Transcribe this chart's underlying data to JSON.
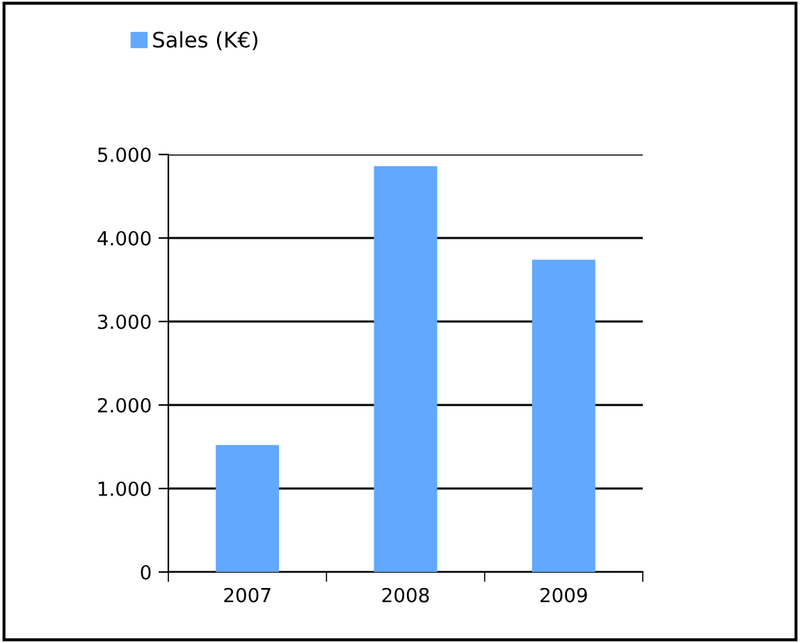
{
  "chart_data": {
    "type": "bar",
    "categories": [
      "2007",
      "2008",
      "2009"
    ],
    "series": [
      {
        "name": "Sales (K€)",
        "color": "#62a8ff",
        "values": [
          1520,
          4860,
          3740
        ]
      }
    ],
    "ylim": [
      0,
      5000
    ],
    "yticks": [
      {
        "value": 0,
        "label": "0"
      },
      {
        "value": 1000,
        "label": "1.000"
      },
      {
        "value": 2000,
        "label": "2.000"
      },
      {
        "value": 3000,
        "label": "3.000"
      },
      {
        "value": 4000,
        "label": "4.000"
      },
      {
        "value": 5000,
        "label": "5.000"
      }
    ],
    "grid": "y",
    "legend": "top left"
  }
}
